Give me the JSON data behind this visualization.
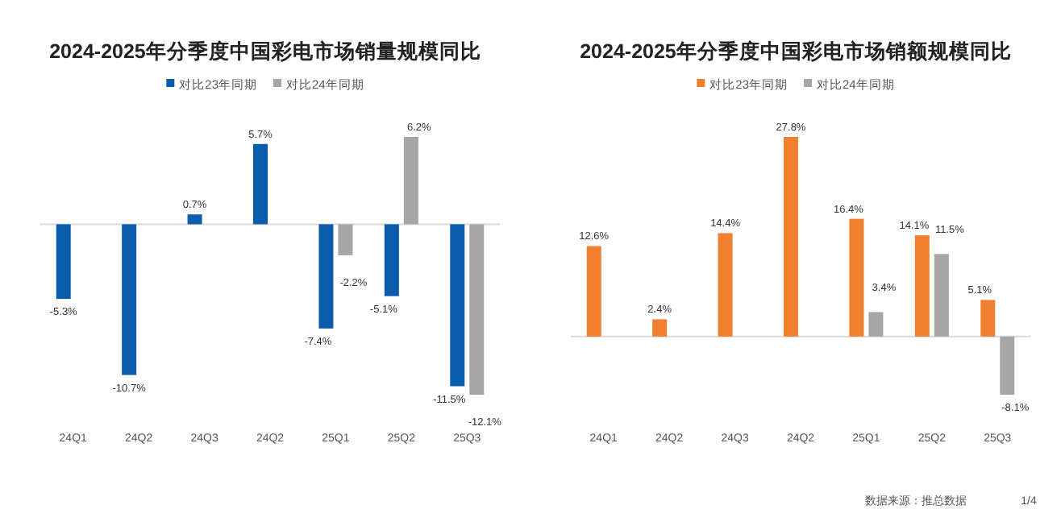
{
  "chart_data": [
    {
      "type": "bar",
      "title": "2024-2025年分季度中国彩电市场销量规模同比",
      "legend": "top",
      "categories": [
        "24Q1",
        "24Q2",
        "24Q3",
        "24Q2",
        "25Q1",
        "25Q2",
        "25Q3"
      ],
      "series": [
        {
          "name": "对比23年同期",
          "color": "#0b5cad",
          "values": [
            -5.3,
            -10.7,
            0.7,
            5.7,
            -7.4,
            -5.1,
            -11.5
          ],
          "value_labels": [
            "-5.3%",
            "-10.7%",
            "0.7%",
            "5.7%",
            "-7.4%",
            "-5.1%",
            "-11.5%"
          ]
        },
        {
          "name": "对比24年同期",
          "color": "#a6a6a6",
          "values": [
            null,
            null,
            null,
            null,
            -2.2,
            6.2,
            -12.1
          ],
          "value_labels": [
            null,
            null,
            null,
            null,
            "-2.2%",
            "6.2%",
            "-12.1%"
          ]
        }
      ]
    },
    {
      "type": "bar",
      "title": "2024-2025年分季度中国彩电市场销额规模同比",
      "legend": "top",
      "categories": [
        "24Q1",
        "24Q2",
        "24Q3",
        "24Q2",
        "25Q1",
        "25Q2",
        "25Q3"
      ],
      "series": [
        {
          "name": "对比23年同期",
          "color": "#f0802f",
          "values": [
            12.6,
            2.4,
            14.4,
            27.8,
            16.4,
            14.1,
            5.1
          ],
          "value_labels": [
            "12.6%",
            "2.4%",
            "14.4%",
            "27.8%",
            "16.4%",
            "14.1%",
            "5.1%"
          ]
        },
        {
          "name": "对比24年同期",
          "color": "#a6a6a6",
          "values": [
            null,
            null,
            null,
            null,
            3.4,
            11.5,
            -8.1
          ],
          "value_labels": [
            null,
            null,
            null,
            null,
            "3.4%",
            "11.5%",
            "-8.1%"
          ]
        }
      ],
      "annotations": [
        "数据来源：推总数据",
        "1/4"
      ]
    }
  ]
}
